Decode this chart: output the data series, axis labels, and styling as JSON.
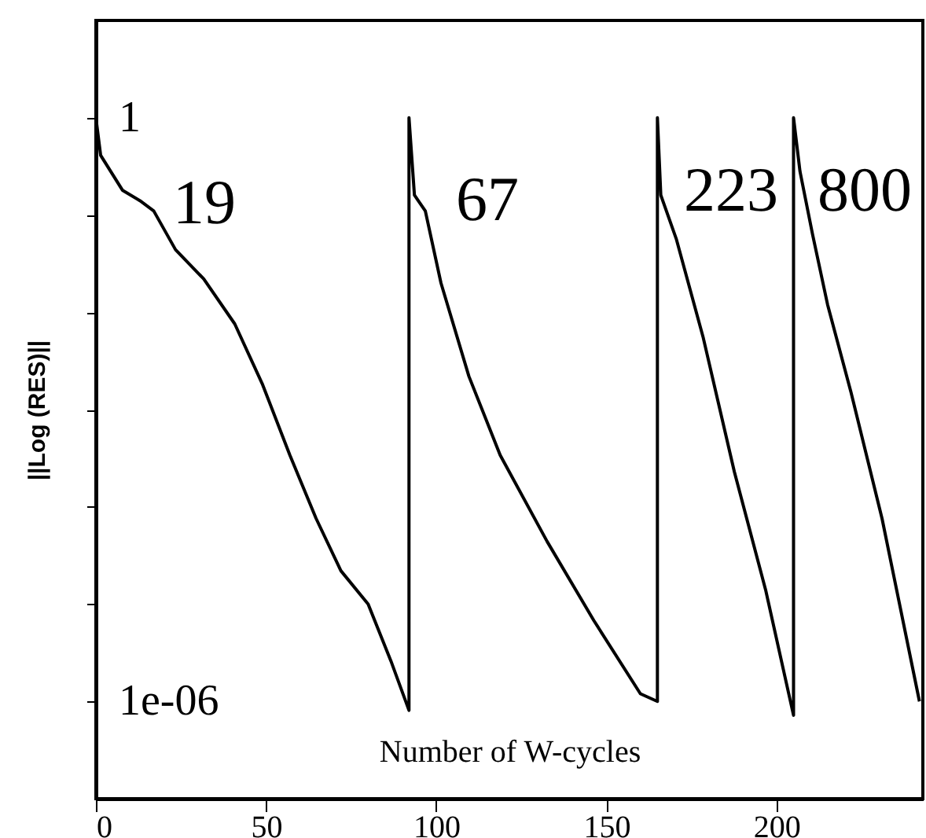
{
  "chart_data": {
    "type": "line",
    "xlabel": "Number of W-cycles",
    "ylabel": "||Log (RES)||",
    "log": "y",
    "xlim": [
      0,
      243
    ],
    "ylim": [
      1e-07,
      10
    ],
    "xticks": [
      0,
      50,
      100,
      150,
      200
    ],
    "yticks": [
      {
        "value": 1e-06,
        "label": "1e-06"
      },
      {
        "value": 1e-05,
        "label": null
      },
      {
        "value": 0.0001,
        "label": null
      },
      {
        "value": 0.001,
        "label": null
      },
      {
        "value": 0.01,
        "label": null
      },
      {
        "value": 0.1,
        "label": null
      },
      {
        "value": 1,
        "label": "1"
      }
    ],
    "grid": false,
    "annotations": [
      "19",
      "67",
      "223",
      "800"
    ],
    "series": [
      {
        "color": "#000000",
        "x": [
          0,
          1.4,
          7.8,
          13,
          17,
          23.4,
          31.7,
          40.8,
          49,
          57,
          64.7,
          72,
          80,
          86.7,
          92,
          92,
          93.6,
          96.8,
          101.4,
          109.6,
          118.8,
          132.6,
          146.3,
          160,
          165,
          165,
          166,
          170.6,
          178.4,
          187.6,
          196.8,
          205,
          205,
          206.9,
          210.6,
          215,
          221.9,
          231,
          242
        ],
        "values": [
          1,
          0.41,
          0.18,
          0.14,
          0.11,
          0.044,
          0.022,
          0.0076,
          0.0018,
          0.00034,
          7.6e-05,
          2.2e-05,
          1e-05,
          2.6e-06,
          8.1e-07,
          1,
          0.16,
          0.11,
          0.02,
          0.0022,
          0.00034,
          4.4e-05,
          6.8e-06,
          1.2e-06,
          1e-06,
          1,
          0.16,
          0.056,
          0.0056,
          0.00023,
          1.4e-05,
          7.2e-07,
          1,
          0.28,
          0.063,
          0.012,
          0.0015,
          7.6e-05,
          1e-06
        ]
      }
    ]
  }
}
